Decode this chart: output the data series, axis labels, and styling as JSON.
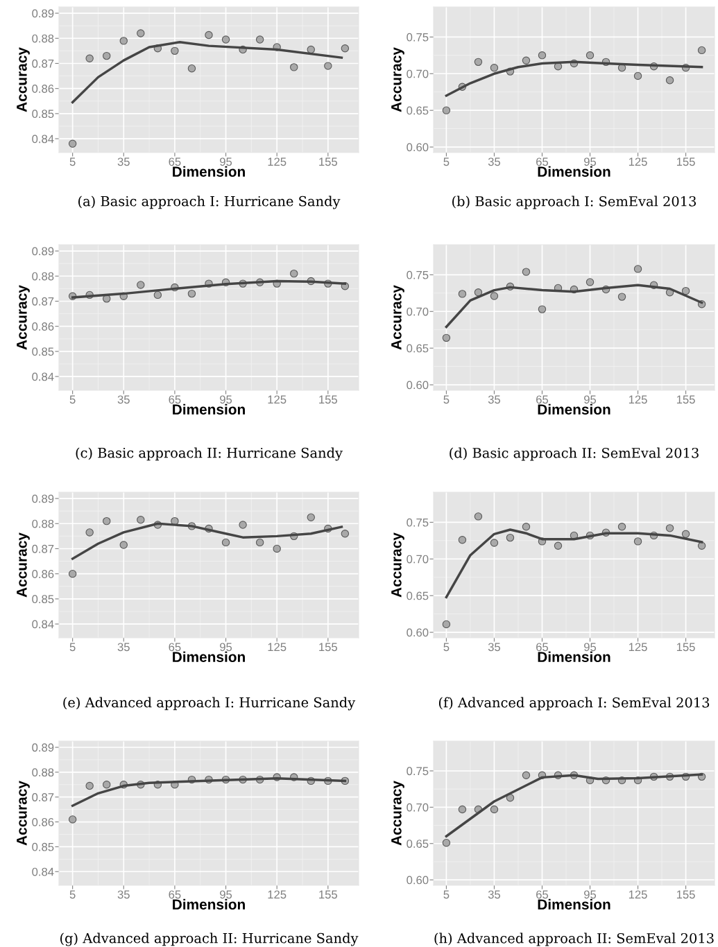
{
  "chart_data": [
    {
      "type": "scatter",
      "xlabel": "Dimension",
      "ylabel": "Accuracy",
      "annotations": [
        "(a) Basic approach I: Hurricane Sandy"
      ],
      "xlim": [
        -3,
        173
      ],
      "xticks": [
        5,
        35,
        65,
        95,
        125,
        155
      ],
      "ylim": [
        0.8345,
        0.8925
      ],
      "yticks": [
        0.84,
        0.85,
        0.86,
        0.87,
        0.88,
        0.89
      ],
      "grid": true,
      "series": [
        {
          "type": "scatter",
          "marker": "circle",
          "color": "#a9a9a9",
          "x": [
            5,
            15,
            25,
            35,
            45,
            55,
            65,
            75,
            85,
            95,
            105,
            115,
            125,
            135,
            145,
            155,
            165
          ],
          "values": [
            0.838,
            0.872,
            0.873,
            0.879,
            0.882,
            0.876,
            0.875,
            0.868,
            0.8813,
            0.8795,
            0.8755,
            0.8795,
            0.8765,
            0.8685,
            0.8755,
            0.869,
            0.876
          ]
        },
        {
          "type": "line",
          "line_style": "solid",
          "color": "#454545",
          "x": [
            5,
            20,
            35,
            50,
            68,
            85,
            125,
            163
          ],
          "values": [
            0.8545,
            0.8645,
            0.8712,
            0.8765,
            0.8785,
            0.877,
            0.8755,
            0.8723
          ]
        }
      ]
    },
    {
      "type": "scatter",
      "xlabel": "Dimension",
      "ylabel": "Accuracy",
      "annotations": [
        "(b) Basic approach I: SemEval 2013"
      ],
      "xlim": [
        -3,
        173
      ],
      "xticks": [
        5,
        35,
        65,
        95,
        125,
        155
      ],
      "ylim": [
        0.5925,
        0.791
      ],
      "yticks": [
        {
          "value": 0.6,
          "label": "0.60"
        },
        {
          "value": 0.65,
          "label": "0.65"
        },
        {
          "value": 0.7,
          "label": "0.70"
        },
        {
          "value": 0.75,
          "label": "0.75"
        }
      ],
      "grid": true,
      "series": [
        {
          "type": "scatter",
          "marker": "circle",
          "color": "#a9a9a9",
          "x": [
            5,
            15,
            25,
            35,
            45,
            55,
            65,
            75,
            85,
            95,
            105,
            115,
            125,
            135,
            145,
            155,
            165
          ],
          "values": [
            0.65,
            0.682,
            0.716,
            0.708,
            0.703,
            0.718,
            0.725,
            0.71,
            0.714,
            0.725,
            0.716,
            0.708,
            0.697,
            0.71,
            0.691,
            0.708,
            0.732
          ]
        },
        {
          "type": "line",
          "line_style": "solid",
          "color": "#454545",
          "x": [
            5,
            20,
            35,
            50,
            65,
            85,
            105,
            125,
            165
          ],
          "values": [
            0.67,
            0.687,
            0.7,
            0.709,
            0.714,
            0.716,
            0.714,
            0.712,
            0.709
          ]
        }
      ]
    },
    {
      "type": "scatter",
      "xlabel": "Dimension",
      "ylabel": "Accuracy",
      "annotations": [
        "(c) Basic approach II: Hurricane Sandy"
      ],
      "xlim": [
        -3,
        173
      ],
      "xticks": [
        5,
        35,
        65,
        95,
        125,
        155
      ],
      "ylim": [
        0.8345,
        0.8925
      ],
      "yticks": [
        0.84,
        0.85,
        0.86,
        0.87,
        0.88,
        0.89
      ],
      "grid": true,
      "series": [
        {
          "type": "scatter",
          "marker": "circle",
          "color": "#a9a9a9",
          "x": [
            5,
            15,
            25,
            35,
            45,
            55,
            65,
            75,
            85,
            95,
            105,
            115,
            125,
            135,
            145,
            155,
            165
          ],
          "values": [
            0.872,
            0.8725,
            0.871,
            0.872,
            0.8765,
            0.8725,
            0.8755,
            0.873,
            0.877,
            0.8775,
            0.877,
            0.8775,
            0.877,
            0.881,
            0.878,
            0.877,
            0.876
          ]
        },
        {
          "type": "line",
          "line_style": "solid",
          "color": "#454545",
          "x": [
            5,
            35,
            65,
            95,
            125,
            145,
            165
          ],
          "values": [
            0.8715,
            0.873,
            0.875,
            0.8768,
            0.878,
            0.8778,
            0.877
          ]
        }
      ]
    },
    {
      "type": "scatter",
      "xlabel": "Dimension",
      "ylabel": "Accuracy",
      "annotations": [
        "(d) Basic approach II: SemEval 2013"
      ],
      "xlim": [
        -3,
        173
      ],
      "xticks": [
        5,
        35,
        65,
        95,
        125,
        155
      ],
      "ylim": [
        0.5925,
        0.791
      ],
      "yticks": [
        {
          "value": 0.6,
          "label": "0.60"
        },
        {
          "value": 0.65,
          "label": "0.65"
        },
        {
          "value": 0.7,
          "label": "0.70"
        },
        {
          "value": 0.75,
          "label": "0.75"
        }
      ],
      "grid": true,
      "series": [
        {
          "type": "scatter",
          "marker": "circle",
          "color": "#a9a9a9",
          "x": [
            5,
            15,
            25,
            35,
            45,
            55,
            65,
            75,
            85,
            95,
            105,
            115,
            125,
            135,
            145,
            155,
            165
          ],
          "values": [
            0.664,
            0.724,
            0.726,
            0.721,
            0.734,
            0.754,
            0.703,
            0.732,
            0.73,
            0.74,
            0.73,
            0.72,
            0.758,
            0.736,
            0.726,
            0.728,
            0.71
          ]
        },
        {
          "type": "line",
          "line_style": "solid",
          "color": "#454545",
          "x": [
            5,
            20,
            35,
            45,
            65,
            85,
            105,
            125,
            145,
            165
          ],
          "values": [
            0.679,
            0.715,
            0.729,
            0.733,
            0.729,
            0.727,
            0.732,
            0.736,
            0.731,
            0.712
          ]
        }
      ]
    },
    {
      "type": "scatter",
      "xlabel": "Dimension",
      "ylabel": "Accuracy",
      "annotations": [
        "(e) Advanced approach I: Hurricane Sandy"
      ],
      "xlim": [
        -3,
        173
      ],
      "xticks": [
        5,
        35,
        65,
        95,
        125,
        155
      ],
      "ylim": [
        0.8345,
        0.8925
      ],
      "yticks": [
        0.84,
        0.85,
        0.86,
        0.87,
        0.88,
        0.89
      ],
      "grid": true,
      "series": [
        {
          "type": "scatter",
          "marker": "circle",
          "color": "#a9a9a9",
          "x": [
            5,
            15,
            25,
            35,
            45,
            55,
            65,
            75,
            85,
            95,
            105,
            115,
            125,
            135,
            145,
            155,
            165
          ],
          "values": [
            0.86,
            0.8765,
            0.881,
            0.8715,
            0.8815,
            0.8795,
            0.881,
            0.879,
            0.878,
            0.8725,
            0.8795,
            0.8725,
            0.87,
            0.875,
            0.8825,
            0.878,
            0.876
          ]
        },
        {
          "type": "line",
          "line_style": "solid",
          "color": "#454545",
          "x": [
            5,
            20,
            35,
            55,
            75,
            95,
            105,
            125,
            145,
            163
          ],
          "values": [
            0.866,
            0.872,
            0.8765,
            0.88,
            0.879,
            0.876,
            0.8745,
            0.875,
            0.876,
            0.8787
          ]
        }
      ]
    },
    {
      "type": "scatter",
      "xlabel": "Dimension",
      "ylabel": "Accuracy",
      "annotations": [
        "(f) Advanced approach I: SemEval 2013"
      ],
      "xlim": [
        -3,
        173
      ],
      "xticks": [
        5,
        35,
        65,
        95,
        125,
        155
      ],
      "ylim": [
        0.5925,
        0.791
      ],
      "yticks": [
        {
          "value": 0.6,
          "label": "0.60"
        },
        {
          "value": 0.65,
          "label": "0.65"
        },
        {
          "value": 0.7,
          "label": "0.70"
        },
        {
          "value": 0.75,
          "label": "0.75"
        }
      ],
      "grid": true,
      "series": [
        {
          "type": "scatter",
          "marker": "circle",
          "color": "#a9a9a9",
          "x": [
            5,
            15,
            25,
            35,
            45,
            55,
            65,
            75,
            85,
            95,
            105,
            115,
            125,
            135,
            145,
            155,
            165
          ],
          "values": [
            0.611,
            0.726,
            0.758,
            0.722,
            0.729,
            0.744,
            0.724,
            0.718,
            0.732,
            0.732,
            0.736,
            0.744,
            0.724,
            0.732,
            0.742,
            0.734,
            0.718
          ]
        },
        {
          "type": "line",
          "line_style": "solid",
          "color": "#454545",
          "x": [
            5,
            20,
            35,
            45,
            55,
            65,
            85,
            105,
            125,
            145,
            165
          ],
          "values": [
            0.648,
            0.705,
            0.734,
            0.74,
            0.735,
            0.727,
            0.727,
            0.735,
            0.735,
            0.732,
            0.723
          ]
        }
      ]
    },
    {
      "type": "scatter",
      "xlabel": "Dimension",
      "ylabel": "Accuracy",
      "annotations": [
        "(g) Advanced approach II: Hurricane Sandy"
      ],
      "xlim": [
        -3,
        173
      ],
      "xticks": [
        5,
        35,
        65,
        95,
        125,
        155
      ],
      "ylim": [
        0.8345,
        0.8925
      ],
      "yticks": [
        0.84,
        0.85,
        0.86,
        0.87,
        0.88,
        0.89
      ],
      "grid": true,
      "series": [
        {
          "type": "scatter",
          "marker": "circle",
          "color": "#a9a9a9",
          "x": [
            5,
            15,
            25,
            35,
            45,
            55,
            65,
            75,
            85,
            95,
            105,
            115,
            125,
            135,
            145,
            155,
            165
          ],
          "values": [
            0.861,
            0.8745,
            0.875,
            0.875,
            0.875,
            0.875,
            0.875,
            0.877,
            0.877,
            0.877,
            0.877,
            0.877,
            0.878,
            0.878,
            0.8765,
            0.8765,
            0.8765
          ]
        },
        {
          "type": "line",
          "line_style": "solid",
          "color": "#454545",
          "x": [
            5,
            20,
            35,
            50,
            95,
            125,
            165
          ],
          "values": [
            0.8665,
            0.8715,
            0.8745,
            0.8757,
            0.8768,
            0.8775,
            0.8765
          ]
        }
      ]
    },
    {
      "type": "scatter",
      "xlabel": "Dimension",
      "ylabel": "Accuracy",
      "annotations": [
        "(h) Advanced approach II: SemEval 2013"
      ],
      "xlim": [
        -3,
        173
      ],
      "xticks": [
        5,
        35,
        65,
        95,
        125,
        155
      ],
      "ylim": [
        0.5925,
        0.791
      ],
      "yticks": [
        {
          "value": 0.6,
          "label": "0.60"
        },
        {
          "value": 0.65,
          "label": "0.65"
        },
        {
          "value": 0.7,
          "label": "0.70"
        },
        {
          "value": 0.75,
          "label": "0.75"
        }
      ],
      "grid": true,
      "series": [
        {
          "type": "scatter",
          "marker": "circle",
          "color": "#a9a9a9",
          "x": [
            5,
            15,
            25,
            35,
            45,
            55,
            65,
            75,
            85,
            95,
            105,
            115,
            125,
            135,
            145,
            155,
            165
          ],
          "values": [
            0.651,
            0.697,
            0.697,
            0.697,
            0.713,
            0.744,
            0.744,
            0.744,
            0.744,
            0.737,
            0.737,
            0.737,
            0.737,
            0.742,
            0.742,
            0.742,
            0.742
          ]
        },
        {
          "type": "line",
          "line_style": "solid",
          "color": "#454545",
          "x": [
            5,
            35,
            65,
            85,
            100,
            125,
            165
          ],
          "values": [
            0.66,
            0.708,
            0.741,
            0.744,
            0.739,
            0.74,
            0.745
          ]
        }
      ]
    }
  ]
}
